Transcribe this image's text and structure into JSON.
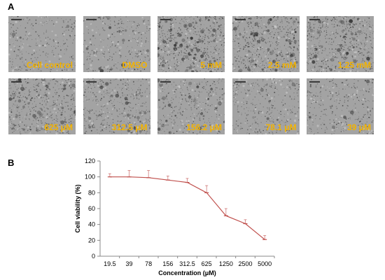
{
  "figure": {
    "panel_a_label": "A",
    "panel_b_label": "B"
  },
  "micrographs": [
    {
      "label": "Cell control",
      "density": 0.25
    },
    {
      "label": "DMSO",
      "density": 0.3
    },
    {
      "label": "5 mM",
      "density": 1.0
    },
    {
      "label": "2.5 mM",
      "density": 0.95
    },
    {
      "label": "1.25 mM",
      "density": 0.9
    },
    {
      "label": "625 μM",
      "density": 0.8
    },
    {
      "label": "312.5 μM",
      "density": 0.55
    },
    {
      "label": "156.2 μM",
      "density": 0.4
    },
    {
      "label": "78.1 μM",
      "density": 0.35
    },
    {
      "label": "39 μM",
      "density": 0.3
    }
  ],
  "colors": {
    "label": "#f2b200",
    "line": "#c0504d",
    "error_bar": "#c0504d",
    "tile_background": "#a3a3a3"
  },
  "chart_data": {
    "type": "line",
    "categories": [
      "19.5",
      "39",
      "78",
      "156",
      "312.5",
      "625",
      "1250",
      "2500",
      "5000"
    ],
    "values": [
      100,
      100,
      99,
      96,
      93,
      80,
      51,
      41,
      21
    ],
    "errors": [
      4,
      8,
      9,
      5,
      5,
      9,
      9,
      5,
      5
    ],
    "xlabel": "Concentration (μM)",
    "ylabel": "Cell viability (%)",
    "ylim": [
      0,
      120
    ],
    "yticks": [
      0,
      20,
      40,
      60,
      80,
      100,
      120
    ],
    "grid": false,
    "legend": "none"
  }
}
